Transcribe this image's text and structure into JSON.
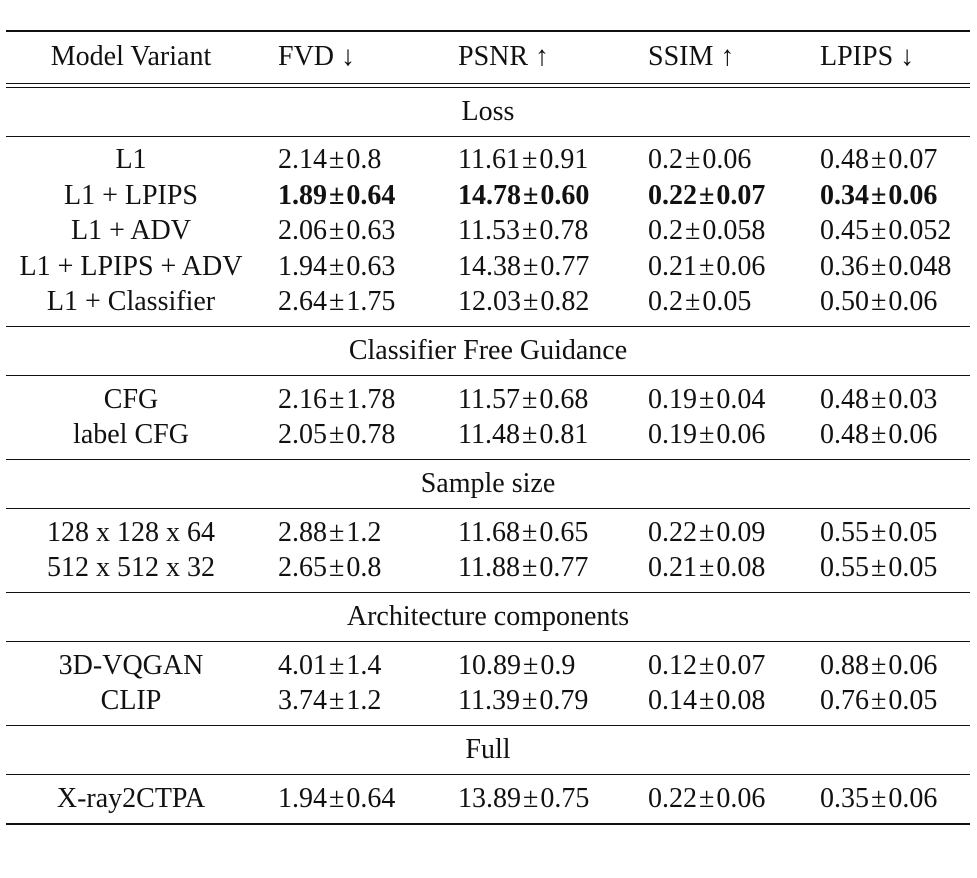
{
  "table": {
    "headers": [
      "Model Variant",
      "FVD ↓",
      "PSNR ↑",
      "SSIM ↑",
      "LPIPS ↓"
    ],
    "sections": [
      {
        "title": "Loss",
        "rows": [
          {
            "model": "L1",
            "cells": [
              [
                "2.14",
                "0.8"
              ],
              [
                "11.61",
                "0.91"
              ],
              [
                "0.2",
                "0.06"
              ],
              [
                "0.48",
                "0.07"
              ]
            ],
            "bold": false
          },
          {
            "model": "L1 + LPIPS",
            "cells": [
              [
                "1.89",
                "0.64"
              ],
              [
                "14.78",
                "0.60"
              ],
              [
                "0.22",
                "0.07"
              ],
              [
                "0.34",
                "0.06"
              ]
            ],
            "bold": true
          },
          {
            "model": "L1 + ADV",
            "cells": [
              [
                "2.06",
                "0.63"
              ],
              [
                "11.53",
                "0.78"
              ],
              [
                "0.2",
                "0.058"
              ],
              [
                "0.45",
                "0.052"
              ]
            ],
            "bold": false
          },
          {
            "model": "L1 + LPIPS + ADV",
            "cells": [
              [
                "1.94",
                "0.63"
              ],
              [
                "14.38",
                "0.77"
              ],
              [
                "0.21",
                "0.06"
              ],
              [
                "0.36",
                "0.048"
              ]
            ],
            "bold": false
          },
          {
            "model": "L1 + Classifier",
            "cells": [
              [
                "2.64",
                "1.75"
              ],
              [
                "12.03",
                "0.82"
              ],
              [
                "0.2",
                "0.05"
              ],
              [
                "0.50",
                "0.06"
              ]
            ],
            "bold": false
          }
        ]
      },
      {
        "title": "Classifier Free Guidance",
        "rows": [
          {
            "model": "CFG",
            "cells": [
              [
                "2.16",
                "1.78"
              ],
              [
                "11.57",
                "0.68"
              ],
              [
                "0.19",
                "0.04"
              ],
              [
                "0.48",
                "0.03"
              ]
            ],
            "bold": false
          },
          {
            "model": "label CFG",
            "cells": [
              [
                "2.05",
                "0.78"
              ],
              [
                "11.48",
                "0.81"
              ],
              [
                "0.19",
                "0.06"
              ],
              [
                "0.48",
                "0.06"
              ]
            ],
            "bold": false
          }
        ]
      },
      {
        "title": "Sample size",
        "rows": [
          {
            "model": "128 x 128 x 64",
            "cells": [
              [
                "2.88",
                "1.2"
              ],
              [
                "11.68",
                "0.65"
              ],
              [
                "0.22",
                "0.09"
              ],
              [
                "0.55",
                "0.05"
              ]
            ],
            "bold": false
          },
          {
            "model": "512 x 512 x 32",
            "cells": [
              [
                "2.65",
                "0.8"
              ],
              [
                "11.88",
                "0.77"
              ],
              [
                "0.21",
                "0.08"
              ],
              [
                "0.55",
                "0.05"
              ]
            ],
            "bold": false
          }
        ]
      },
      {
        "title": "Architecture components",
        "rows": [
          {
            "model": "3D-VQGAN",
            "cells": [
              [
                "4.01",
                "1.4"
              ],
              [
                "10.89",
                "0.9"
              ],
              [
                "0.12",
                "0.07"
              ],
              [
                "0.88",
                "0.06"
              ]
            ],
            "bold": false
          },
          {
            "model": "CLIP",
            "cells": [
              [
                "3.74",
                "1.2"
              ],
              [
                "11.39",
                "0.79"
              ],
              [
                "0.14",
                "0.08"
              ],
              [
                "0.76",
                "0.05"
              ]
            ],
            "bold": false
          }
        ]
      },
      {
        "title": "Full",
        "rows": [
          {
            "model": "X-ray2CTPA",
            "cells": [
              [
                "1.94",
                "0.64"
              ],
              [
                "13.89",
                "0.75"
              ],
              [
                "0.22",
                "0.06"
              ],
              [
                "0.35",
                "0.06"
              ]
            ],
            "bold": false
          }
        ]
      }
    ]
  }
}
